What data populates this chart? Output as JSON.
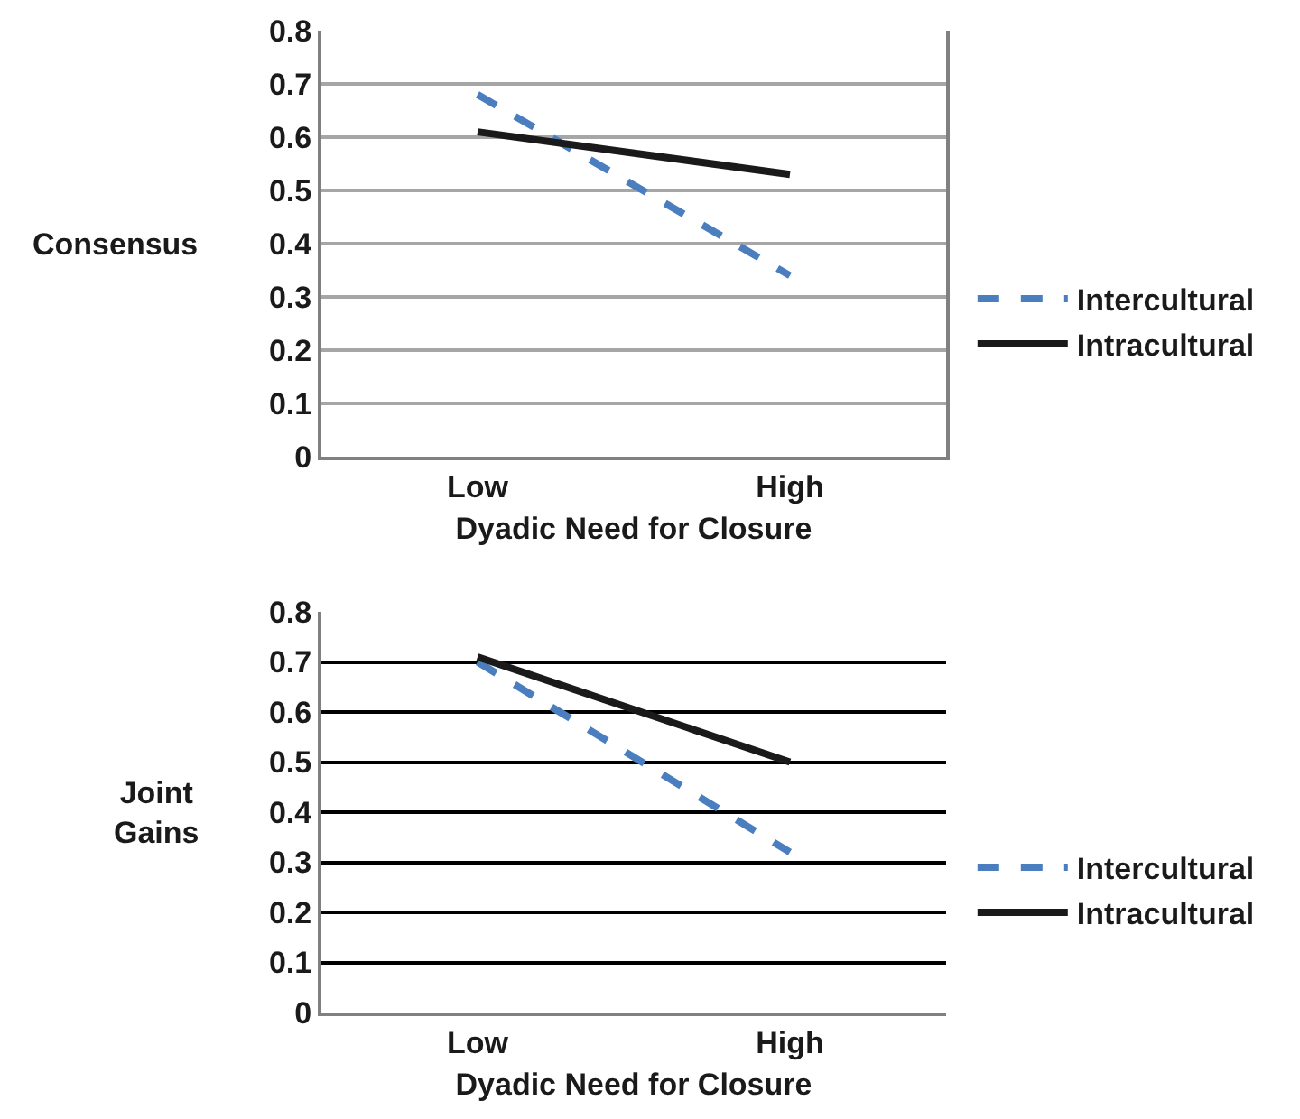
{
  "chart_data": [
    {
      "type": "line",
      "ylabel": "Consensus",
      "xlabel": "Dyadic Need for Closure",
      "categories": [
        "Low",
        "High"
      ],
      "ylim": [
        0,
        0.8
      ],
      "yticks": [
        0,
        0.1,
        0.2,
        0.3,
        0.4,
        0.5,
        0.6,
        0.7,
        0.8
      ],
      "grid": "y",
      "legend": "right",
      "marker": "none",
      "series": [
        {
          "name": "Intercultural",
          "color": "#4a7ebf",
          "line_style": "dashed",
          "values": [
            0.68,
            0.34
          ]
        },
        {
          "name": "Intracultural",
          "color": "#1a1a1a",
          "line_style": "solid",
          "values": [
            0.61,
            0.53
          ]
        }
      ]
    },
    {
      "type": "line",
      "ylabel": "Joint Gains",
      "xlabel": "Dyadic Need for Closure",
      "categories": [
        "Low",
        "High"
      ],
      "ylim": [
        0,
        0.8
      ],
      "yticks": [
        0,
        0.1,
        0.2,
        0.3,
        0.4,
        0.5,
        0.6,
        0.7,
        0.8
      ],
      "grid": "y",
      "legend": "right",
      "marker": "none",
      "series": [
        {
          "name": "Intercultural",
          "color": "#4a7ebf",
          "line_style": "dashed",
          "values": [
            0.7,
            0.32
          ]
        },
        {
          "name": "Intracultural",
          "color": "#1a1a1a",
          "line_style": "solid",
          "values": [
            0.71,
            0.5
          ]
        }
      ]
    }
  ]
}
